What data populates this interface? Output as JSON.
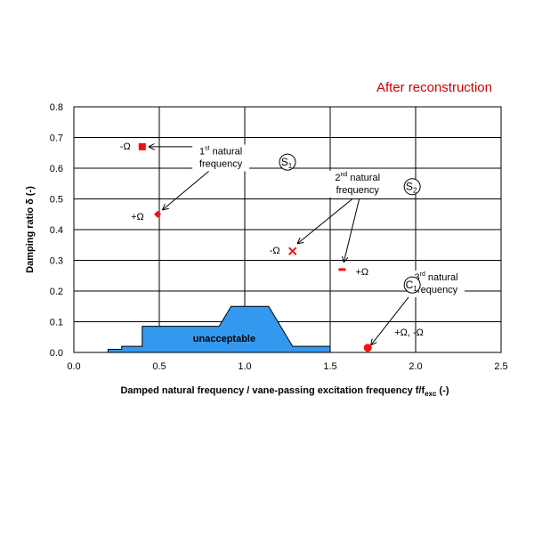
{
  "chart_data": {
    "type": "scatter",
    "title": "After reconstruction",
    "title_color": "#cc0000",
    "xlabel": "Damped natural frequency / vane-passing excitation frequency  f/f",
    "xlabel_sub": "exc",
    "xlabel_unit": " (-)",
    "ylabel": "Damping ratio  δ (-)",
    "xlim": [
      0.0,
      2.5
    ],
    "ylim": [
      0.0,
      0.8
    ],
    "x_ticks": [
      "0.0",
      "0.5",
      "1.0",
      "1.5",
      "2.0",
      "2.5"
    ],
    "y_ticks": [
      "0.0",
      "0.1",
      "0.2",
      "0.3",
      "0.4",
      "0.5",
      "0.6",
      "0.7",
      "0.8"
    ],
    "grid": true,
    "marker_color": "#ee1111",
    "region_color": "#3399ee",
    "unacceptable_region": {
      "label": "unacceptable",
      "points": [
        [
          0.2,
          0.0
        ],
        [
          0.2,
          0.01
        ],
        [
          0.28,
          0.01
        ],
        [
          0.28,
          0.02
        ],
        [
          0.4,
          0.02
        ],
        [
          0.4,
          0.085
        ],
        [
          0.85,
          0.085
        ],
        [
          0.92,
          0.15
        ],
        [
          1.14,
          0.15
        ],
        [
          1.28,
          0.02
        ],
        [
          1.5,
          0.02
        ],
        [
          1.5,
          0.0
        ]
      ]
    },
    "points": [
      {
        "id": "s1-minus",
        "x": 0.4,
        "y": 0.67,
        "marker": "square",
        "label": "-Ω"
      },
      {
        "id": "s1-plus",
        "x": 0.49,
        "y": 0.45,
        "marker": "diamond",
        "label": "+Ω"
      },
      {
        "id": "s2-minus",
        "x": 1.28,
        "y": 0.33,
        "marker": "x",
        "label": "-Ω"
      },
      {
        "id": "s2-plus",
        "x": 1.57,
        "y": 0.27,
        "marker": "dash",
        "label": "+Ω"
      },
      {
        "id": "c1",
        "x": 1.72,
        "y": 0.015,
        "marker": "circle",
        "label": "+Ω, -Ω"
      }
    ],
    "modes": [
      {
        "name": "S",
        "sub": "1",
        "x": 1.25,
        "y": 0.62
      },
      {
        "name": "S",
        "sub": "2",
        "x": 1.98,
        "y": 0.54
      },
      {
        "name": "C",
        "sub": "1",
        "x": 1.98,
        "y": 0.22
      }
    ],
    "annotations": [
      {
        "id": "nf1",
        "ord": "1",
        "sup": "st",
        "line1": " natural",
        "line2": "frequency",
        "x": 0.86,
        "y": 0.645,
        "arrows_from": [
          [
            0.8,
            0.67
          ],
          [
            0.8,
            0.595
          ]
        ],
        "arrows_to": [
          [
            0.44,
            0.67
          ],
          [
            0.52,
            0.465
          ]
        ]
      },
      {
        "id": "nf2",
        "ord": "2",
        "sup": "nd",
        "line1": " natural",
        "line2": "frequency",
        "x": 1.66,
        "y": 0.56,
        "arrows_from": [
          [
            1.63,
            0.5
          ],
          [
            1.67,
            0.5
          ]
        ],
        "arrows_to": [
          [
            1.31,
            0.355
          ],
          [
            1.58,
            0.295
          ]
        ]
      },
      {
        "id": "nf3",
        "ord": "3",
        "sup": "rd",
        "line1": " natural",
        "line2": "frequency",
        "x": 2.12,
        "y": 0.235,
        "arrows_from": [
          [
            1.98,
            0.195
          ]
        ],
        "arrows_to": [
          [
            1.74,
            0.025
          ]
        ]
      }
    ]
  }
}
